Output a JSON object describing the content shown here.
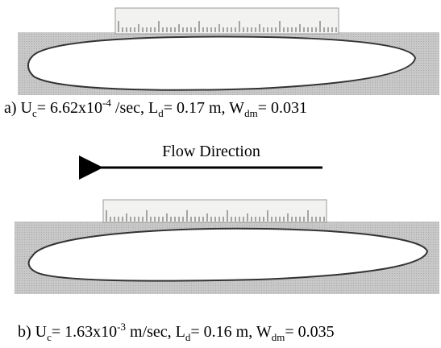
{
  "figure": {
    "panels": [
      {
        "caption": [
          {
            "base": "a) U"
          },
          {
            "sub": "c"
          },
          {
            "base": "= 6.62x10"
          },
          {
            "sup": "-4"
          },
          {
            "base": " /sec, L"
          },
          {
            "sub": "d"
          },
          {
            "base": "= 0.17 m, W"
          },
          {
            "sub": "dm"
          },
          {
            "base": "= 0.031"
          }
        ]
      },
      {
        "label": "Flow Direction",
        "caption": [
          {
            "base": "b) U"
          },
          {
            "sub": "c"
          },
          {
            "base": "= 1.63x10"
          },
          {
            "sup": "-3"
          },
          {
            "base": " m/sec, L"
          },
          {
            "sub": "d"
          },
          {
            "base": "= 0.16 m, W"
          },
          {
            "sub": "dm"
          },
          {
            "base": "= 0.035"
          }
        ]
      }
    ]
  }
}
